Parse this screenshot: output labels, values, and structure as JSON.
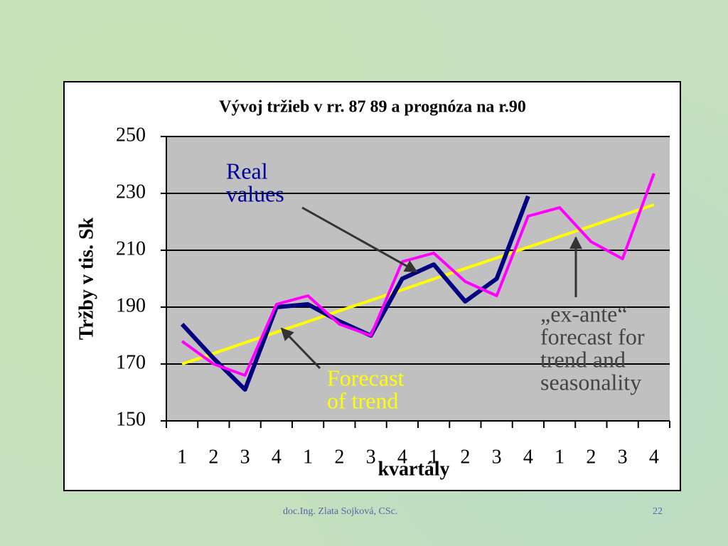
{
  "chart_data": {
    "type": "line",
    "title": "Vývoj tržieb v rr. 87 89 a prognóza na r.90",
    "y_label": "Tržby v tis. Sk",
    "x_label": "kvartály",
    "categories": [
      "1",
      "2",
      "3",
      "4",
      "1",
      "2",
      "3",
      "4",
      "1",
      "2",
      "3",
      "4",
      "1",
      "2",
      "3",
      "4"
    ],
    "ylim": [
      150,
      250
    ],
    "yticks": [
      150,
      170,
      190,
      210,
      230,
      250
    ],
    "grid": true,
    "series": [
      {
        "color": "#ffff00",
        "values": [
          170,
          173.7,
          177.5,
          181.2,
          184.9,
          188.7,
          192.4,
          196.1,
          199.9,
          203.6,
          207.3,
          211.1,
          214.8,
          218.5,
          222.3,
          226
        ]
      },
      {
        "color": "#000080",
        "values": [
          184,
          172,
          161,
          190,
          191,
          185,
          180,
          200,
          205,
          192,
          200,
          229,
          null,
          null,
          null,
          null
        ]
      },
      {
        "color": "#ff00ff",
        "values": [
          178,
          170,
          166,
          191,
          194,
          184,
          180,
          206,
          209,
          199,
          194,
          222,
          225,
          213,
          207,
          237
        ]
      }
    ],
    "annotations": [
      {
        "lines": [
          "Real",
          "values"
        ],
        "color": "#000099"
      },
      {
        "lines": [
          "Forecast",
          "of trend"
        ],
        "color": "#ffff00"
      },
      {
        "lines": [
          "„ex-ante“",
          "forecast for",
          "trend and",
          "seasonality"
        ],
        "color": "#444444"
      }
    ]
  },
  "footer": {
    "author": "doc.Ing. Zlata Sojková, CSc.",
    "page": "22"
  }
}
